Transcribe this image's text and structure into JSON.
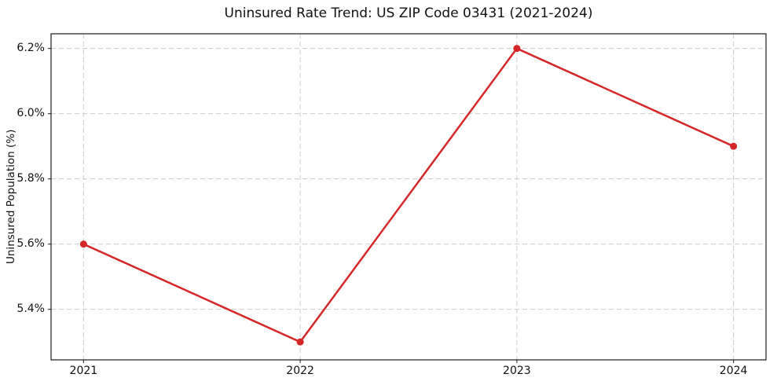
{
  "figure": {
    "background": "#ffffff"
  },
  "chart_data": {
    "type": "line",
    "title": "Uninsured Rate Trend: US ZIP Code 03431 (2021-2024)",
    "xlabel": "",
    "ylabel": "Uninsured Population (%)",
    "x": [
      2021,
      2022,
      2023,
      2024
    ],
    "values": [
      5.6,
      5.3,
      6.2,
      5.9
    ],
    "xlim": [
      2020.85,
      2024.15
    ],
    "ylim": [
      5.245,
      6.245
    ],
    "xticks": [
      {
        "value": 2021,
        "label": "2021"
      },
      {
        "value": 2022,
        "label": "2022"
      },
      {
        "value": 2023,
        "label": "2023"
      },
      {
        "value": 2024,
        "label": "2024"
      }
    ],
    "yticks": [
      {
        "value": 5.4,
        "label": "5.4%"
      },
      {
        "value": 5.6,
        "label": "5.6%"
      },
      {
        "value": 5.8,
        "label": "5.8%"
      },
      {
        "value": 6.0,
        "label": "6.0%"
      },
      {
        "value": 6.2,
        "label": "6.2%"
      }
    ],
    "grid": true,
    "grid_style": "dashed",
    "legend": false,
    "line_color": "#d62728",
    "marker": "o",
    "grid_color": "#cccccc",
    "axis_color": "#1a1a1a"
  }
}
